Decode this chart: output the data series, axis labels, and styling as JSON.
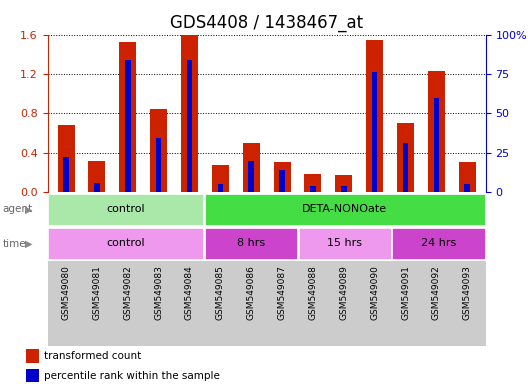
{
  "title": "GDS4408 / 1438467_at",
  "samples": [
    "GSM549080",
    "GSM549081",
    "GSM549082",
    "GSM549083",
    "GSM549084",
    "GSM549085",
    "GSM549086",
    "GSM549087",
    "GSM549088",
    "GSM549089",
    "GSM549090",
    "GSM549091",
    "GSM549092",
    "GSM549093"
  ],
  "red_values": [
    0.68,
    0.32,
    1.52,
    0.84,
    1.6,
    0.27,
    0.5,
    0.3,
    0.18,
    0.17,
    1.54,
    0.7,
    1.23,
    0.3
  ],
  "blue_percentile": [
    22,
    6,
    84,
    34,
    84,
    5,
    20,
    14,
    4,
    4,
    76,
    31,
    60,
    5
  ],
  "ylim_left": [
    0,
    1.6
  ],
  "ylim_right": [
    0,
    100
  ],
  "yticks_left": [
    0,
    0.4,
    0.8,
    1.2,
    1.6
  ],
  "yticks_right": [
    0,
    25,
    50,
    75,
    100
  ],
  "ytick_labels_right": [
    "0",
    "25",
    "50",
    "75",
    "100%"
  ],
  "agent_row": [
    {
      "label": "control",
      "start": 0,
      "end": 5,
      "color": "#aae8aa"
    },
    {
      "label": "DETA-NONOate",
      "start": 5,
      "end": 14,
      "color": "#44dd44"
    }
  ],
  "time_row": [
    {
      "label": "control",
      "start": 0,
      "end": 5,
      "color": "#ee99ee"
    },
    {
      "label": "8 hrs",
      "start": 5,
      "end": 8,
      "color": "#cc44cc"
    },
    {
      "label": "15 hrs",
      "start": 8,
      "end": 11,
      "color": "#ee99ee"
    },
    {
      "label": "24 hrs",
      "start": 11,
      "end": 14,
      "color": "#cc44cc"
    }
  ],
  "red_color": "#cc2200",
  "blue_color": "#0000cc",
  "title_fontsize": 12,
  "background_color": "#ffffff",
  "sample_bg_color": "#cccccc"
}
